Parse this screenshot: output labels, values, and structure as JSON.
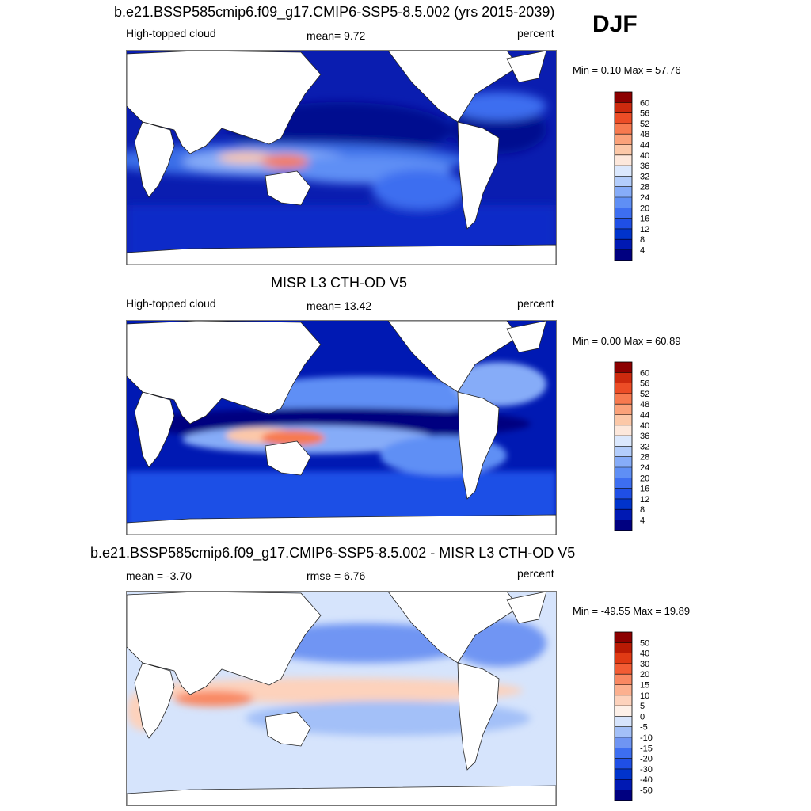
{
  "season": "DJF",
  "panels": [
    {
      "id": "model",
      "title": "b.e21.BSSP585cmip6.f09_g17.CMIP6-SSP5-8.5.002 (yrs 2015-2039)",
      "left_label": "High-topped cloud",
      "center_label": "mean=   9.72",
      "right_label": "percent",
      "minmax": "Min =   0.10 Max =  57.76",
      "colorbar": {
        "levels": [
          "4",
          "8",
          "12",
          "16",
          "20",
          "24",
          "28",
          "32",
          "36",
          "40",
          "44",
          "48",
          "52",
          "56",
          "60"
        ],
        "colors": [
          "#000080",
          "#0019b3",
          "#0033cc",
          "#1f4fe6",
          "#3d6ef0",
          "#5f8ff5",
          "#86acf8",
          "#b3cdfb",
          "#dbe8fd",
          "#fde8dc",
          "#fcc8a8",
          "#fba27a",
          "#f77a4f",
          "#ec4d26",
          "#cc2a0e",
          "#8c0000"
        ]
      }
    },
    {
      "id": "obs",
      "title": "MISR L3 CTH-OD V5",
      "left_label": "High-topped cloud",
      "center_label": "mean=  13.42",
      "right_label": "percent",
      "minmax": "Min =   0.00 Max =  60.89",
      "colorbar": {
        "levels": [
          "4",
          "8",
          "12",
          "16",
          "20",
          "24",
          "28",
          "32",
          "36",
          "40",
          "44",
          "48",
          "52",
          "56",
          "60"
        ],
        "colors": [
          "#000080",
          "#0019b3",
          "#0033cc",
          "#1f4fe6",
          "#3d6ef0",
          "#5f8ff5",
          "#86acf8",
          "#b3cdfb",
          "#dbe8fd",
          "#fde8dc",
          "#fcc8a8",
          "#fba27a",
          "#f77a4f",
          "#ec4d26",
          "#cc2a0e",
          "#8c0000"
        ]
      }
    },
    {
      "id": "diff",
      "title": "b.e21.BSSP585cmip6.f09_g17.CMIP6-SSP5-8.5.002 - MISR L3 CTH-OD V5",
      "left_label": "mean =  -3.70",
      "center_label": "rmse =   6.76",
      "right_label": "percent",
      "minmax": "Min = -49.55 Max =  19.89",
      "colorbar": {
        "levels": [
          "-50",
          "-40",
          "-30",
          "-20",
          "-15",
          "-10",
          "-5",
          "0",
          "5",
          "10",
          "15",
          "20",
          "30",
          "40",
          "50"
        ],
        "colors": [
          "#000080",
          "#0019b3",
          "#0033cc",
          "#1f4fe6",
          "#3d6ef0",
          "#6f95f3",
          "#a3c0f8",
          "#d6e4fc",
          "#fdf0e8",
          "#fdd2bc",
          "#fcb08f",
          "#f98862",
          "#f25c34",
          "#e03a14",
          "#b81a04",
          "#8c0000"
        ]
      }
    }
  ]
}
